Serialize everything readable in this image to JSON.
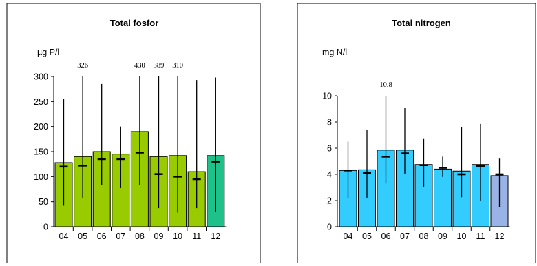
{
  "chart_data": [
    {
      "type": "bar",
      "title": "Total fosfor",
      "ylabel": "µg P/l",
      "categories": [
        "04",
        "05",
        "06",
        "07",
        "08",
        "09",
        "10",
        "11",
        "12"
      ],
      "values": [
        128,
        140,
        150,
        145,
        190,
        140,
        142,
        110,
        142
      ],
      "means": [
        120,
        122,
        135,
        135,
        148,
        105,
        100,
        95,
        130
      ],
      "max": [
        256,
        300,
        285,
        200,
        300,
        300,
        300,
        293,
        298
      ],
      "min": [
        42,
        57,
        83,
        77,
        83,
        37,
        28,
        37,
        30
      ],
      "ylim": [
        0,
        300
      ],
      "yticks": [
        "0",
        "50",
        "100",
        "150",
        "200",
        "250",
        "300"
      ],
      "annotations": [
        {
          "index": 1,
          "text": "326"
        },
        {
          "index": 4,
          "text": "430"
        },
        {
          "index": 5,
          "text": "389"
        },
        {
          "index": 6,
          "text": "310"
        }
      ],
      "bar_color": "#99cc00",
      "highlight_index": 8,
      "highlight_color": "#1fc08a"
    },
    {
      "type": "bar",
      "title": "Total nitrogen",
      "ylabel": "mg N/l",
      "categories": [
        "04",
        "05",
        "06",
        "07",
        "08",
        "09",
        "10",
        "11",
        "12"
      ],
      "values": [
        4.3,
        4.35,
        5.85,
        5.85,
        4.75,
        4.4,
        4.25,
        4.75,
        3.9
      ],
      "means": [
        4.3,
        4.1,
        5.35,
        5.6,
        4.7,
        4.5,
        4.0,
        4.65,
        4.0
      ],
      "max": [
        6.5,
        7.4,
        10,
        9.05,
        6.75,
        5.35,
        7.6,
        7.85,
        5.2
      ],
      "min": [
        2.15,
        2.2,
        3.3,
        4.0,
        3.0,
        3.8,
        2.25,
        2.0,
        1.5
      ],
      "ylim": [
        0,
        10
      ],
      "yticks": [
        "0",
        "2",
        "4",
        "6",
        "8",
        "10"
      ],
      "annotations": [
        {
          "index": 2,
          "text": "10,8"
        }
      ],
      "bar_color": "#33ccff",
      "highlight_index": 8,
      "highlight_color": "#99b3e6"
    }
  ]
}
